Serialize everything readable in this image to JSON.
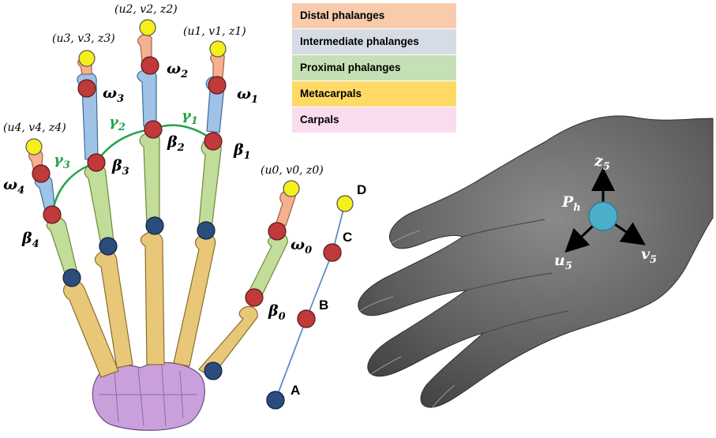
{
  "legend": {
    "items": [
      {
        "label": "Distal phalanges",
        "color": "#f8cbad"
      },
      {
        "label": "Intermediate phalanges",
        "color": "#d6dce5"
      },
      {
        "label": "Proximal phalanges",
        "color": "#c5e0b4"
      },
      {
        "label": "Metacarpals",
        "color": "#ffd966"
      },
      {
        "label": "Carpals",
        "color": "#fadcef"
      }
    ]
  },
  "colors": {
    "distal": "#f4b08f",
    "intermediate": "#9ec3e6",
    "proximal": "#c2dd9a",
    "metacarpal": "#e8c878",
    "carpal": "#c9a0dc",
    "tip_joint": "#f5ef1a",
    "red_joint": "#c0393b",
    "blue_joint": "#2b4d7d",
    "arc": "#22a24a",
    "hand_skin": "#6e6e6e",
    "palm_point": "#4bafc9"
  },
  "labels": {
    "coord0": "(u0, v0, z0)",
    "coord1": "(u1, v1, z1)",
    "coord2": "(u2, v2, z2)",
    "coord3": "(u3, v3, z3)",
    "coord4": "(u4, v4, z4)",
    "omega0": "ω0",
    "omega1": "ω1",
    "omega2": "ω2",
    "omega3": "ω3",
    "omega4": "ω4",
    "beta0": "β0",
    "beta1": "β1",
    "beta2": "β2",
    "beta3": "β3",
    "beta4": "β4",
    "gamma1": "γ1",
    "gamma2": "γ2",
    "gamma3": "γ3",
    "pointA": "A",
    "pointB": "B",
    "pointC": "C",
    "pointD": "D",
    "palm": "Ph",
    "axis_z": "z5",
    "axis_u": "u5",
    "axis_v": "v5"
  }
}
